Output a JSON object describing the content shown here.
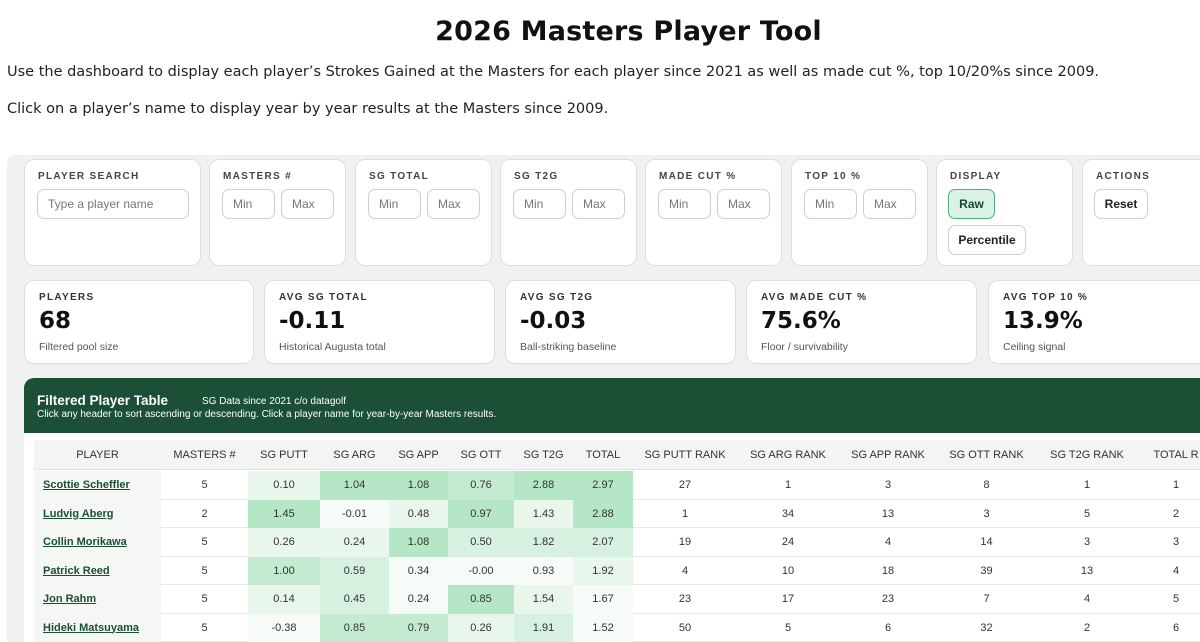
{
  "page": {
    "title": "2026 Masters Player Tool",
    "intro_line1": "Use the dashboard to display each player’s Strokes Gained at the Masters for each player since 2021 as well as made cut %, top 10/20%s since 2009.",
    "intro_line2": "Click on a player’s name to display year by year results at the Masters since 2009."
  },
  "filters": {
    "player_search": {
      "label": "PLAYER SEARCH",
      "placeholder": "Type a player name"
    },
    "masters_count": {
      "label": "MASTERS #",
      "min": "Min",
      "max": "Max"
    },
    "sg_total": {
      "label": "SG TOTAL",
      "min": "Min",
      "max": "Max"
    },
    "sg_t2g": {
      "label": "SG T2G",
      "min": "Min",
      "max": "Max"
    },
    "made_cut": {
      "label": "MADE CUT %",
      "min": "Min",
      "max": "Max"
    },
    "top10": {
      "label": "TOP 10 %",
      "min": "Min",
      "max": "Max"
    },
    "display": {
      "label": "DISPLAY",
      "options": [
        "Raw",
        "Percentile"
      ],
      "selected": "Raw"
    },
    "actions": {
      "label": "ACTIONS",
      "reset": "Reset"
    }
  },
  "kpis": [
    {
      "label": "PLAYERS",
      "value": "68",
      "sub": "Filtered pool size"
    },
    {
      "label": "AVG SG TOTAL",
      "value": "-0.11",
      "sub": "Historical Augusta total"
    },
    {
      "label": "AVG SG T2G",
      "value": "-0.03",
      "sub": "Ball-striking baseline"
    },
    {
      "label": "AVG MADE CUT %",
      "value": "75.6%",
      "sub": "Floor / survivability"
    },
    {
      "label": "AVG TOP 10 %",
      "value": "13.9%",
      "sub": "Ceiling signal"
    }
  ],
  "table": {
    "title": "Filtered Player Table",
    "subtitle": "SG Data since 2021 c/o datagolf",
    "hint": "Click any header to sort ascending or descending. Click a player name for year-by-year Masters results.",
    "columns": [
      "PLAYER",
      "MASTERS #",
      "SG PUTT",
      "SG ARG",
      "SG APP",
      "SG OTT",
      "SG T2G",
      "TOTAL",
      "SG PUTT RANK",
      "SG ARG RANK",
      "SG APP RANK",
      "SG OTT RANK",
      "SG T2G RANK",
      "TOTAL R"
    ],
    "rows": [
      [
        "Scottie Scheffler",
        "5",
        "0.10",
        "1.04",
        "1.08",
        "0.76",
        "2.88",
        "2.97",
        "27",
        "1",
        "3",
        "8",
        "1",
        "1"
      ],
      [
        "Ludvig Aberg",
        "2",
        "1.45",
        "-0.01",
        "0.48",
        "0.97",
        "1.43",
        "2.88",
        "1",
        "34",
        "13",
        "3",
        "5",
        "2"
      ],
      [
        "Collin Morikawa",
        "5",
        "0.26",
        "0.24",
        "1.08",
        "0.50",
        "1.82",
        "2.07",
        "19",
        "24",
        "4",
        "14",
        "3",
        "3"
      ],
      [
        "Patrick Reed",
        "5",
        "1.00",
        "0.59",
        "0.34",
        "-0.00",
        "0.93",
        "1.92",
        "4",
        "10",
        "18",
        "39",
        "13",
        "4"
      ],
      [
        "Jon Rahm",
        "5",
        "0.14",
        "0.45",
        "0.24",
        "0.85",
        "1.54",
        "1.67",
        "23",
        "17",
        "23",
        "7",
        "4",
        "5"
      ],
      [
        "Hideki Matsuyama",
        "5",
        "-0.38",
        "0.85",
        "0.79",
        "0.26",
        "1.91",
        "1.52",
        "50",
        "5",
        "6",
        "32",
        "2",
        "6"
      ]
    ]
  }
}
